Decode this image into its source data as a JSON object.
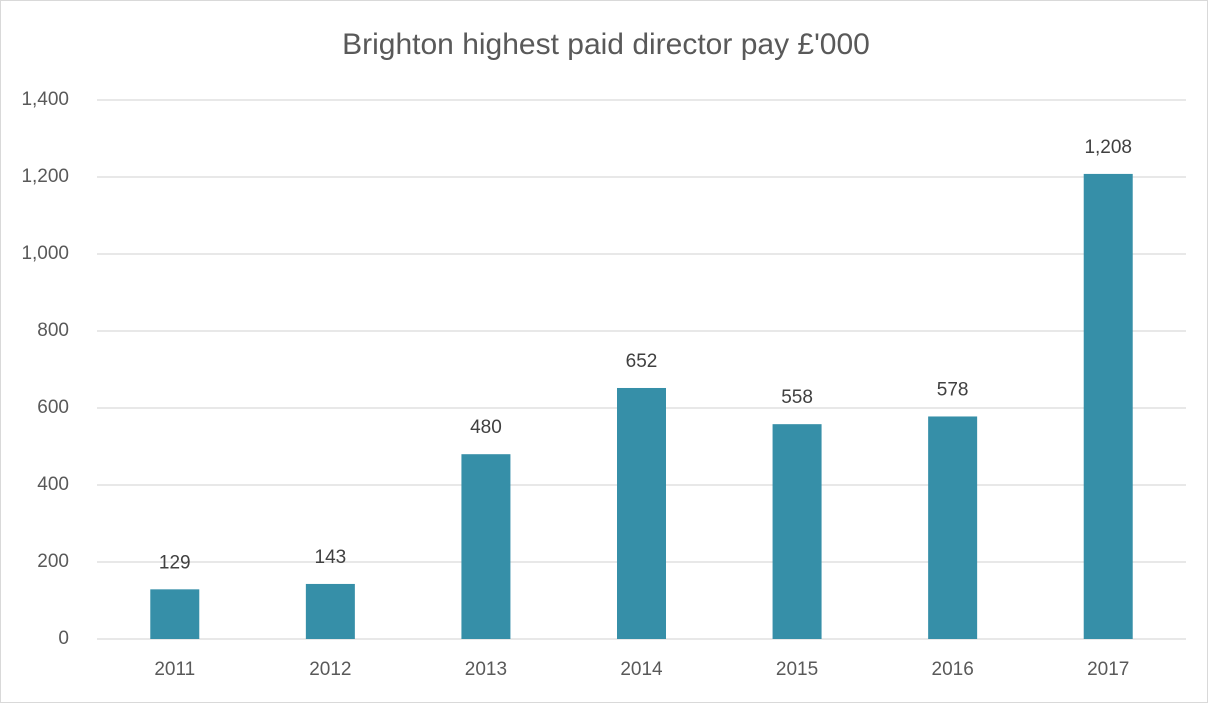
{
  "chart_data": {
    "type": "bar",
    "title": "Brighton highest paid director pay £'000",
    "categories": [
      "2011",
      "2012",
      "2013",
      "2014",
      "2015",
      "2016",
      "2017"
    ],
    "values": [
      129,
      143,
      480,
      652,
      558,
      578,
      1208
    ],
    "value_labels": [
      "129",
      "143",
      "480",
      "652",
      "558",
      "578",
      "1,208"
    ],
    "color": "#368fa8",
    "ylim": [
      0,
      1400
    ],
    "yticks": [
      0,
      200,
      400,
      600,
      800,
      {
        "value": 1000,
        "label": "1,000"
      },
      {
        "value": 1200,
        "label": "1,200"
      },
      {
        "value": 1400,
        "label": "1,400"
      }
    ],
    "grid": true
  }
}
